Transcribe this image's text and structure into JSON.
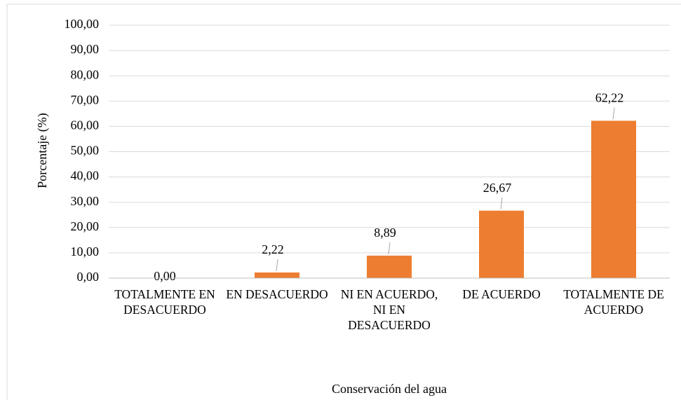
{
  "chart_data": {
    "type": "bar",
    "y_label": "Porcentaje (%)",
    "x_label": "Conservación del agua",
    "categories": [
      "TOTALMENTE EN DESACUERDO",
      "EN DESACUERDO",
      "NI EN ACUERDO, NI EN DESACUERDO",
      "DE ACUERDO",
      "TOTALMENTE DE ACUERDO"
    ],
    "values": [
      0,
      2.22,
      8.89,
      26.67,
      62.22
    ],
    "value_labels": [
      "0,00",
      "2,22",
      "8,89",
      "26,67",
      "62,22"
    ],
    "color": "#ed7d31",
    "ylim": [
      0,
      100
    ],
    "yticks": [
      {
        "value": 0,
        "label": "0,00"
      },
      {
        "value": 10,
        "label": "10,00"
      },
      {
        "value": 20,
        "label": "20,00"
      },
      {
        "value": 30,
        "label": "30,00"
      },
      {
        "value": 40,
        "label": "40,00"
      },
      {
        "value": 50,
        "label": "50,00"
      },
      {
        "value": 60,
        "label": "60,00"
      },
      {
        "value": 70,
        "label": "70,00"
      },
      {
        "value": 80,
        "label": "80,00"
      },
      {
        "value": 90,
        "label": "90,00"
      },
      {
        "value": 100,
        "label": "100,00"
      }
    ],
    "grid": true
  }
}
